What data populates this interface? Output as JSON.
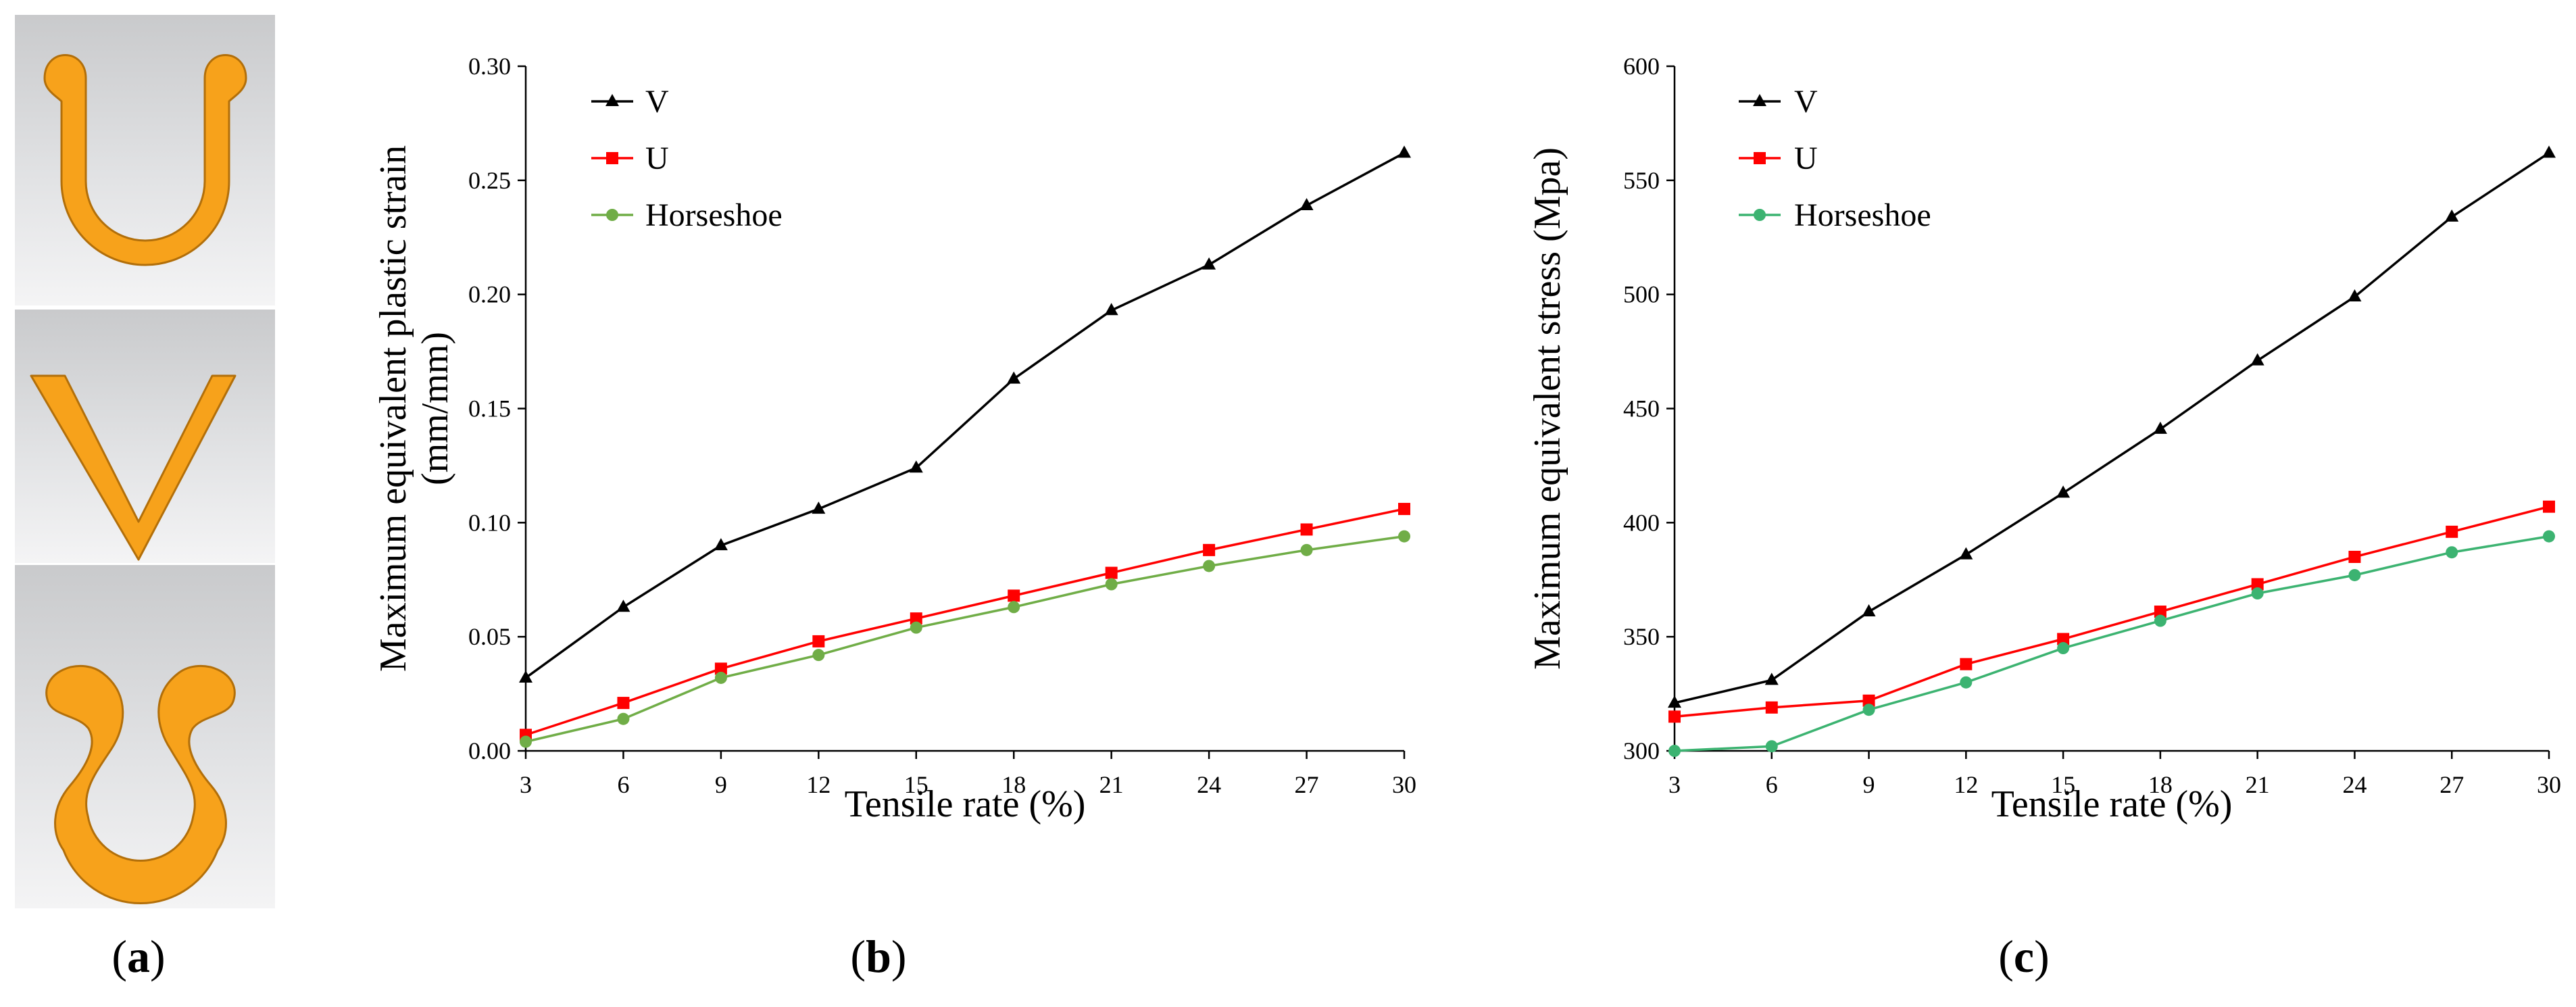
{
  "panel_a": {
    "label_open": "(",
    "label_letter": "a",
    "label_close": ")",
    "shape_colors": {
      "fill": "#F7A21B",
      "stroke": "#B26F0A"
    },
    "tiles": [
      {
        "shape": "U"
      },
      {
        "shape": "V"
      },
      {
        "shape": "Horseshoe"
      }
    ]
  },
  "chart_data": [
    {
      "panel": "b",
      "type": "line",
      "label_open": "(",
      "label_letter": "b",
      "label_close": ")",
      "title": "",
      "xlabel": "Tensile rate (%)",
      "ylabel_line1": "Maximum equivalent plastic strain",
      "ylabel_line2": "(mm/mm)",
      "x": [
        3,
        6,
        9,
        12,
        15,
        18,
        21,
        24,
        27,
        30
      ],
      "x_tick_labels": [
        "3",
        "6",
        "9",
        "12",
        "15",
        "18",
        "21",
        "24",
        "27",
        "30"
      ],
      "xlim": [
        3,
        30
      ],
      "ylim": [
        0,
        0.3
      ],
      "y_ticks": [
        0,
        0.05,
        0.1,
        0.15,
        0.2,
        0.25,
        0.3
      ],
      "y_tick_labels": [
        "0.00",
        "0.05",
        "0.10",
        "0.15",
        "0.20",
        "0.25",
        "0.30"
      ],
      "legend_position": "top-left",
      "grid": false,
      "series": [
        {
          "name": "V",
          "color": "#000000",
          "marker": "triangle",
          "values": [
            0.032,
            0.063,
            0.09,
            0.106,
            0.124,
            0.163,
            0.193,
            0.213,
            0.239,
            0.262
          ]
        },
        {
          "name": "U",
          "color": "#FF0000",
          "marker": "square",
          "values": [
            0.007,
            0.021,
            0.036,
            0.048,
            0.058,
            0.068,
            0.078,
            0.088,
            0.097,
            0.106
          ]
        },
        {
          "name": "Horseshoe",
          "color": "#70AD47",
          "marker": "circle",
          "values": [
            0.004,
            0.014,
            0.032,
            0.042,
            0.054,
            0.063,
            0.073,
            0.081,
            0.088,
            0.094
          ]
        }
      ]
    },
    {
      "panel": "c",
      "type": "line",
      "label_open": "(",
      "label_letter": "c",
      "label_close": ")",
      "title": "",
      "xlabel": "Tensile rate (%)",
      "ylabel_line1": "Maximum equivalent stress (Mpa)",
      "ylabel_line2": "",
      "x": [
        3,
        6,
        9,
        12,
        15,
        18,
        21,
        24,
        27,
        30
      ],
      "x_tick_labels": [
        "3",
        "6",
        "9",
        "12",
        "15",
        "18",
        "21",
        "24",
        "27",
        "30"
      ],
      "xlim": [
        3,
        30
      ],
      "ylim": [
        300,
        600
      ],
      "y_ticks": [
        300,
        350,
        400,
        450,
        500,
        550,
        600
      ],
      "y_tick_labels": [
        "300",
        "350",
        "400",
        "450",
        "500",
        "550",
        "600"
      ],
      "legend_position": "top-left",
      "grid": false,
      "series": [
        {
          "name": "V",
          "color": "#000000",
          "marker": "triangle",
          "values": [
            321,
            331,
            361,
            386,
            413,
            441,
            471,
            499,
            534,
            562
          ]
        },
        {
          "name": "U",
          "color": "#FF0000",
          "marker": "square",
          "values": [
            315,
            319,
            322,
            338,
            349,
            361,
            373,
            385,
            396,
            407
          ]
        },
        {
          "name": "Horseshoe",
          "color": "#3CB371",
          "marker": "circle",
          "values": [
            299,
            302,
            318,
            330,
            345,
            357,
            369,
            377,
            387,
            394
          ]
        }
      ]
    }
  ]
}
